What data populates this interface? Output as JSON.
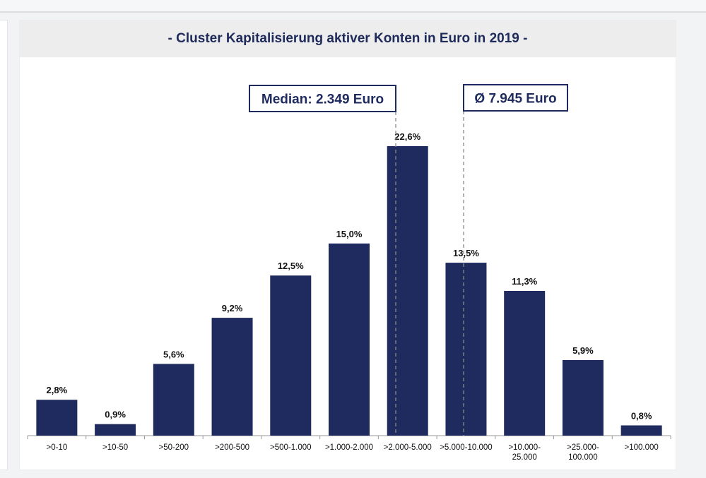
{
  "chart_data": {
    "type": "bar",
    "title": "- Cluster Kapitalisierung aktiver Konten in Euro in 2019 -",
    "categories": [
      ">0-10",
      ">10-50",
      ">50-200",
      ">200-500",
      ">500-1.000",
      ">1.000-2.000",
      ">2.000-5.000",
      ">5.000-10.000",
      ">10.000-\n25.000",
      ">25.000-\n100.000",
      ">100.000"
    ],
    "values": [
      2.8,
      0.9,
      5.6,
      9.2,
      12.5,
      15.0,
      22.6,
      13.5,
      11.3,
      5.9,
      0.8
    ],
    "value_labels": [
      "2,8%",
      "0,9%",
      "5,6%",
      "9,2%",
      "12,5%",
      "15,0%",
      "22,6%",
      "13,5%",
      "11,3%",
      "5,9%",
      "0,8%"
    ],
    "ylim": [
      0,
      25
    ],
    "grid": false,
    "bar_color": "#1f2b5e",
    "reference_lines": [
      {
        "label": "Median: 2.349 Euro",
        "category_index": 6.0,
        "style": "dashed"
      },
      {
        "label": "Ø 7.945 Euro",
        "category_index": 7.0,
        "style": "dashed"
      }
    ]
  }
}
